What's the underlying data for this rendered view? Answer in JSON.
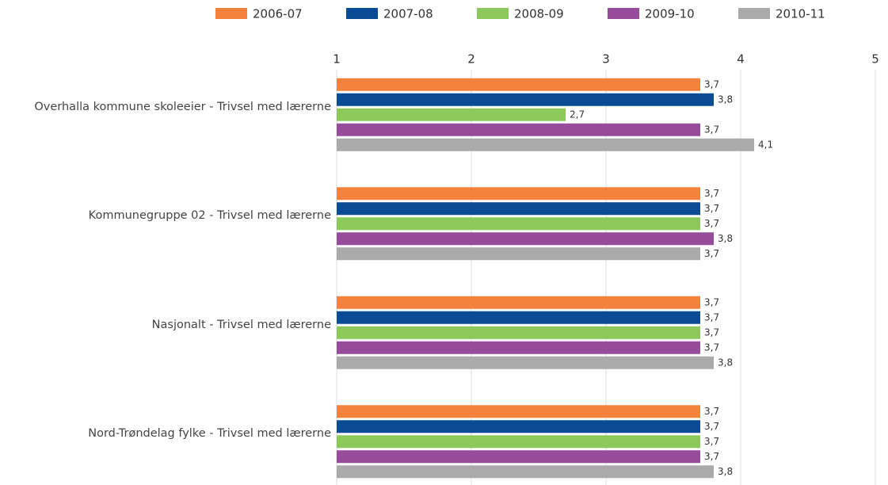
{
  "chart_data": {
    "type": "bar",
    "orientation": "horizontal",
    "categories": [
      "Overhalla kommune skoleeier - Trivsel med lærerne",
      "Kommunegruppe 02 - Trivsel med lærerne",
      "Nasjonalt - Trivsel med lærerne",
      "Nord-Trøndelag fylke - Trivsel med lærerne"
    ],
    "series": [
      {
        "name": "2006-07",
        "color": "#f5823c",
        "values": [
          3.7,
          3.7,
          3.7,
          3.7
        ],
        "value_labels": [
          "3,7",
          "3,7",
          "3,7",
          "3,7"
        ]
      },
      {
        "name": "2007-08",
        "color": "#0a4b96",
        "values": [
          3.8,
          3.7,
          3.7,
          3.7
        ],
        "value_labels": [
          "3,8",
          "3,7",
          "3,7",
          "3,7"
        ]
      },
      {
        "name": "2008-09",
        "color": "#8cc85a",
        "values": [
          2.7,
          3.7,
          3.7,
          3.7
        ],
        "value_labels": [
          "2,7",
          "3,7",
          "3,7",
          "3,7"
        ]
      },
      {
        "name": "2009-10",
        "color": "#964b9b",
        "values": [
          3.7,
          3.8,
          3.7,
          3.7
        ],
        "value_labels": [
          "3,7",
          "3,8",
          "3,7",
          "3,7"
        ]
      },
      {
        "name": "2010-11",
        "color": "#aaaaaa",
        "values": [
          4.1,
          3.7,
          3.8,
          3.8
        ],
        "value_labels": [
          "4,1",
          "3,7",
          "3,8",
          "3,8"
        ]
      }
    ],
    "xlim": [
      1,
      5
    ],
    "xticks": [
      1,
      2,
      3,
      4,
      5
    ],
    "grid": true,
    "legend": "top"
  }
}
